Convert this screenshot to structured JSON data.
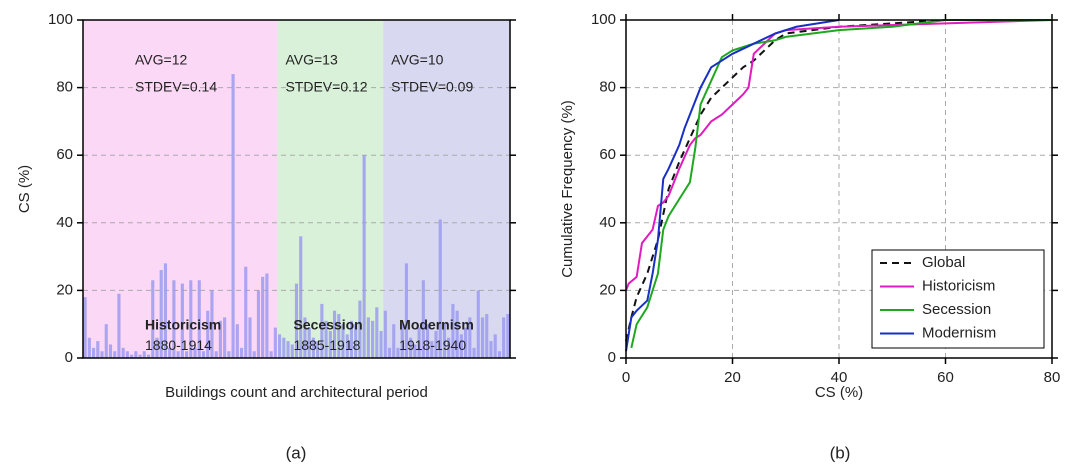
{
  "chart_data": [
    {
      "type": "bar",
      "caption": "(a)",
      "x_label": "Buildings count and architectural period",
      "y_label": "CS (%)",
      "ylim": [
        0,
        100
      ],
      "yticks": [
        0,
        20,
        40,
        60,
        80,
        100
      ],
      "grid": true,
      "bar_color": "#9b9bf0",
      "series": [
        {
          "name": "Historicism",
          "period": "1880-1914",
          "background": "#fbd8f5",
          "annotation": [
            "AVG=12",
            "STDEV=0.14"
          ],
          "values": [
            18,
            6,
            3,
            5,
            2,
            10,
            4,
            2,
            19,
            3,
            2,
            1,
            2,
            1,
            2,
            1,
            23,
            6,
            26,
            28,
            3,
            23,
            2,
            22,
            2,
            23,
            3,
            23,
            2,
            14,
            20,
            2,
            11,
            12,
            2,
            84,
            10,
            3,
            27,
            12,
            2,
            20,
            24,
            25,
            2,
            9
          ]
        },
        {
          "name": "Secession",
          "period": "1885-1918",
          "background": "#d9f1d9",
          "annotation": [
            "AVG=13",
            "STDEV=0.12"
          ],
          "values": [
            7,
            6,
            5,
            4,
            22,
            36,
            12,
            9,
            6,
            5,
            16,
            11,
            8,
            14,
            13,
            10,
            7,
            11,
            10,
            17,
            60,
            12,
            11,
            15,
            8
          ]
        },
        {
          "name": "Modernism",
          "period": "1918-1940",
          "background": "#d8d8f0",
          "annotation": [
            "AVG=10",
            "STDEV=0.09"
          ],
          "values": [
            14,
            3,
            10,
            3,
            10,
            28,
            6,
            4,
            9,
            23,
            10,
            5,
            8,
            41,
            10,
            6,
            16,
            14,
            7,
            9,
            12,
            3,
            20,
            12,
            13,
            5,
            7,
            2,
            12,
            13
          ]
        }
      ]
    },
    {
      "type": "line",
      "caption": "(b)",
      "x_label": "CS (%)",
      "y_label": "Cumulative Frequency (%)",
      "xlim": [
        0,
        80
      ],
      "xticks": [
        0,
        20,
        40,
        60,
        80
      ],
      "ylim": [
        0,
        100
      ],
      "yticks": [
        0,
        20,
        40,
        60,
        80,
        100
      ],
      "grid": true,
      "legend": "lower right",
      "series": [
        {
          "name": "Global",
          "color": "#111111",
          "dashed": true,
          "x": [
            0,
            1,
            2,
            4,
            6,
            8,
            10,
            12,
            14,
            16,
            18,
            20,
            22,
            24,
            26,
            28,
            30,
            35,
            40,
            50,
            60,
            80
          ],
          "values": [
            5,
            12,
            18,
            25,
            35,
            50,
            58,
            65,
            72,
            77,
            80,
            83,
            86,
            88,
            91,
            94,
            96,
            97,
            98,
            99,
            100,
            100
          ]
        },
        {
          "name": "Historicism",
          "color": "#e01bbf",
          "dashed": false,
          "x": [
            0,
            0.5,
            2,
            3,
            4,
            5,
            6,
            7,
            8,
            10,
            12,
            13,
            14,
            16,
            18,
            20,
            22,
            23,
            24,
            26,
            28,
            30,
            40,
            60,
            80
          ],
          "values": [
            20,
            22,
            24,
            34,
            36,
            38,
            45,
            46,
            48,
            56,
            63,
            65,
            66,
            70,
            72,
            75,
            78,
            80,
            90,
            93,
            96,
            97,
            98,
            99,
            100
          ]
        },
        {
          "name": "Secession",
          "color": "#1fa81f",
          "dashed": false,
          "x": [
            1,
            2,
            4,
            6,
            7,
            8,
            10,
            12,
            13,
            14,
            16,
            18,
            20,
            24,
            28,
            30,
            40,
            50,
            60,
            80
          ],
          "values": [
            3,
            10,
            15,
            25,
            38,
            42,
            47,
            52,
            62,
            75,
            82,
            89,
            91,
            93,
            94,
            95,
            97,
            98,
            100,
            100
          ]
        },
        {
          "name": "Modernism",
          "color": "#1a2fc4",
          "dashed": false,
          "x": [
            0,
            1,
            2,
            4,
            5,
            6,
            7,
            8,
            10,
            11,
            12,
            14,
            16,
            18,
            20,
            24,
            28,
            32,
            40
          ],
          "values": [
            2,
            12,
            14,
            17,
            25,
            35,
            53,
            56,
            63,
            68,
            72,
            80,
            86,
            88,
            90,
            93,
            96,
            98,
            100
          ]
        }
      ]
    }
  ]
}
